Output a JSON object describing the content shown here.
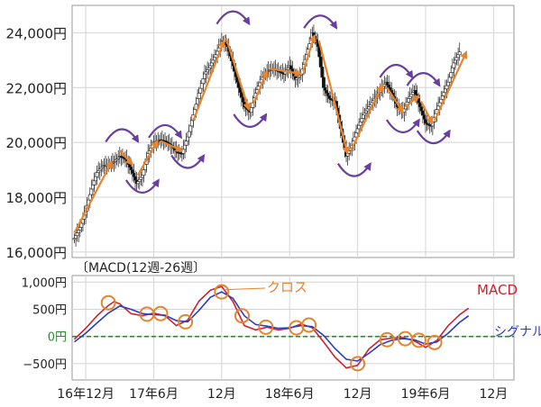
{
  "chart_data": [
    {
      "type": "candlestick",
      "y_ticks": [
        16000,
        18000,
        20000,
        22000,
        24000
      ],
      "y_tick_labels": [
        "16,000円",
        "18,000円",
        "20,000円",
        "22,000円",
        "24,000円"
      ],
      "ylim": [
        15800,
        25000
      ],
      "x_ticks": [
        0,
        6,
        12,
        18,
        24,
        30,
        36
      ],
      "x_tick_labels": [
        "16年12月",
        "17年6月",
        "12月",
        "18年6月",
        "12月",
        "19年6月",
        "12月"
      ],
      "xlim": [
        -1.2,
        37.8
      ],
      "series": [
        {
          "values": [
            [
              -1.0,
              16500
            ],
            [
              -0.5,
              16900
            ],
            [
              0.0,
              17500
            ],
            [
              0.5,
              18300
            ],
            [
              1.0,
              18900
            ],
            [
              1.5,
              19150
            ],
            [
              2.0,
              19200
            ],
            [
              2.5,
              19300
            ],
            [
              3.0,
              19500
            ],
            [
              3.5,
              19400
            ],
            [
              4.0,
              19000
            ],
            [
              4.5,
              18500
            ],
            [
              5.0,
              18800
            ],
            [
              5.5,
              19600
            ],
            [
              6.0,
              20000
            ],
            [
              6.5,
              20100
            ],
            [
              7.0,
              20050
            ],
            [
              7.5,
              19900
            ],
            [
              8.0,
              19650
            ],
            [
              8.5,
              19600
            ],
            [
              9.0,
              20200
            ],
            [
              9.5,
              21000
            ],
            [
              10.0,
              21800
            ],
            [
              10.5,
              22500
            ],
            [
              11.0,
              22800
            ],
            [
              11.5,
              23200
            ],
            [
              12.0,
              23700
            ],
            [
              12.5,
              23500
            ],
            [
              13.0,
              22800
            ],
            [
              13.5,
              22000
            ],
            [
              14.0,
              21300
            ],
            [
              14.5,
              21100
            ],
            [
              15.0,
              21800
            ],
            [
              15.5,
              22300
            ],
            [
              16.0,
              22600
            ],
            [
              16.5,
              22700
            ],
            [
              17.0,
              22600
            ],
            [
              17.5,
              22500
            ],
            [
              18.0,
              22800
            ],
            [
              18.5,
              22300
            ],
            [
              19.0,
              22500
            ],
            [
              19.5,
              23200
            ],
            [
              20.0,
              24000
            ],
            [
              20.5,
              23500
            ],
            [
              21.0,
              22000
            ],
            [
              21.5,
              21600
            ],
            [
              22.0,
              21500
            ],
            [
              22.5,
              20500
            ],
            [
              23.0,
              19500
            ],
            [
              23.5,
              19900
            ],
            [
              24.0,
              20500
            ],
            [
              24.5,
              21000
            ],
            [
              25.0,
              21300
            ],
            [
              25.5,
              21600
            ],
            [
              26.0,
              21900
            ],
            [
              26.5,
              22200
            ],
            [
              27.0,
              21800
            ],
            [
              27.5,
              21300
            ],
            [
              28.0,
              21100
            ],
            [
              28.5,
              21600
            ],
            [
              29.0,
              21900
            ],
            [
              29.5,
              21300
            ],
            [
              30.0,
              20700
            ],
            [
              30.5,
              20600
            ],
            [
              31.0,
              21200
            ],
            [
              31.5,
              21700
            ],
            [
              32.0,
              22200
            ],
            [
              32.5,
              22900
            ],
            [
              33.0,
              23300
            ]
          ]
        }
      ]
    },
    {
      "type": "line",
      "title": "〔MACD(12週-26週〕",
      "y_ticks": [
        -500,
        0,
        500,
        1000
      ],
      "y_tick_labels": [
        "−500円",
        "0円",
        "500円",
        "1,000円"
      ],
      "ylim": [
        -800,
        1120
      ],
      "xlim": [
        -1.2,
        37.8
      ],
      "zero_line": true,
      "series": [
        {
          "name": "MACD",
          "color": "#d0202a",
          "values": [
            [
              -1.0,
              -50
            ],
            [
              0.0,
              150
            ],
            [
              1.0,
              380
            ],
            [
              2.0,
              570
            ],
            [
              2.5,
              640
            ],
            [
              3.0,
              600
            ],
            [
              4.0,
              420
            ],
            [
              5.0,
              380
            ],
            [
              6.0,
              430
            ],
            [
              7.0,
              380
            ],
            [
              8.0,
              200
            ],
            [
              9.0,
              300
            ],
            [
              10.0,
              650
            ],
            [
              11.0,
              850
            ],
            [
              12.0,
              920
            ],
            [
              13.0,
              640
            ],
            [
              14.0,
              200
            ],
            [
              15.0,
              120
            ],
            [
              16.0,
              170
            ],
            [
              17.0,
              120
            ],
            [
              18.0,
              150
            ],
            [
              19.0,
              230
            ],
            [
              20.0,
              160
            ],
            [
              21.0,
              -100
            ],
            [
              22.0,
              -380
            ],
            [
              23.0,
              -580
            ],
            [
              24.0,
              -530
            ],
            [
              25.0,
              -230
            ],
            [
              26.0,
              -60
            ],
            [
              27.0,
              -30
            ],
            [
              28.0,
              -20
            ],
            [
              29.0,
              -80
            ],
            [
              30.0,
              -200
            ],
            [
              31.0,
              -70
            ],
            [
              32.0,
              200
            ],
            [
              33.0,
              400
            ],
            [
              33.8,
              520
            ]
          ]
        },
        {
          "name": "シグナル",
          "color": "#2b3fbf",
          "values": [
            [
              -1.0,
              -100
            ],
            [
              0.0,
              60
            ],
            [
              1.0,
              250
            ],
            [
              2.0,
              430
            ],
            [
              3.0,
              560
            ],
            [
              4.0,
              500
            ],
            [
              5.0,
              420
            ],
            [
              6.0,
              400
            ],
            [
              7.0,
              390
            ],
            [
              8.0,
              290
            ],
            [
              9.0,
              270
            ],
            [
              10.0,
              480
            ],
            [
              11.0,
              720
            ],
            [
              12.0,
              820
            ],
            [
              13.0,
              700
            ],
            [
              14.0,
              380
            ],
            [
              15.0,
              220
            ],
            [
              16.0,
              190
            ],
            [
              17.0,
              150
            ],
            [
              18.0,
              160
            ],
            [
              19.0,
              200
            ],
            [
              20.0,
              180
            ],
            [
              21.0,
              20
            ],
            [
              22.0,
              -220
            ],
            [
              23.0,
              -420
            ],
            [
              24.0,
              -450
            ],
            [
              25.0,
              -310
            ],
            [
              26.0,
              -150
            ],
            [
              27.0,
              -70
            ],
            [
              28.0,
              -40
            ],
            [
              29.0,
              -60
            ],
            [
              30.0,
              -140
            ],
            [
              31.0,
              -100
            ],
            [
              32.0,
              60
            ],
            [
              33.0,
              260
            ],
            [
              33.8,
              380
            ]
          ]
        }
      ],
      "cross_points": [
        [
          2.0,
          620
        ],
        [
          5.4,
          410
        ],
        [
          6.6,
          420
        ],
        [
          8.8,
          270
        ],
        [
          12.0,
          820
        ],
        [
          13.8,
          380
        ],
        [
          15.9,
          170
        ],
        [
          18.6,
          160
        ],
        [
          19.7,
          210
        ],
        [
          24.0,
          -500
        ],
        [
          26.6,
          -60
        ],
        [
          28.2,
          -40
        ],
        [
          29.4,
          -70
        ],
        [
          30.8,
          -110
        ]
      ],
      "annotations": [
        {
          "text": "クロス",
          "color": "#e8842c"
        },
        {
          "text": "MACD",
          "color": "#d0202a"
        },
        {
          "text": "シグナル",
          "color": "#2b3fbf"
        }
      ]
    }
  ]
}
